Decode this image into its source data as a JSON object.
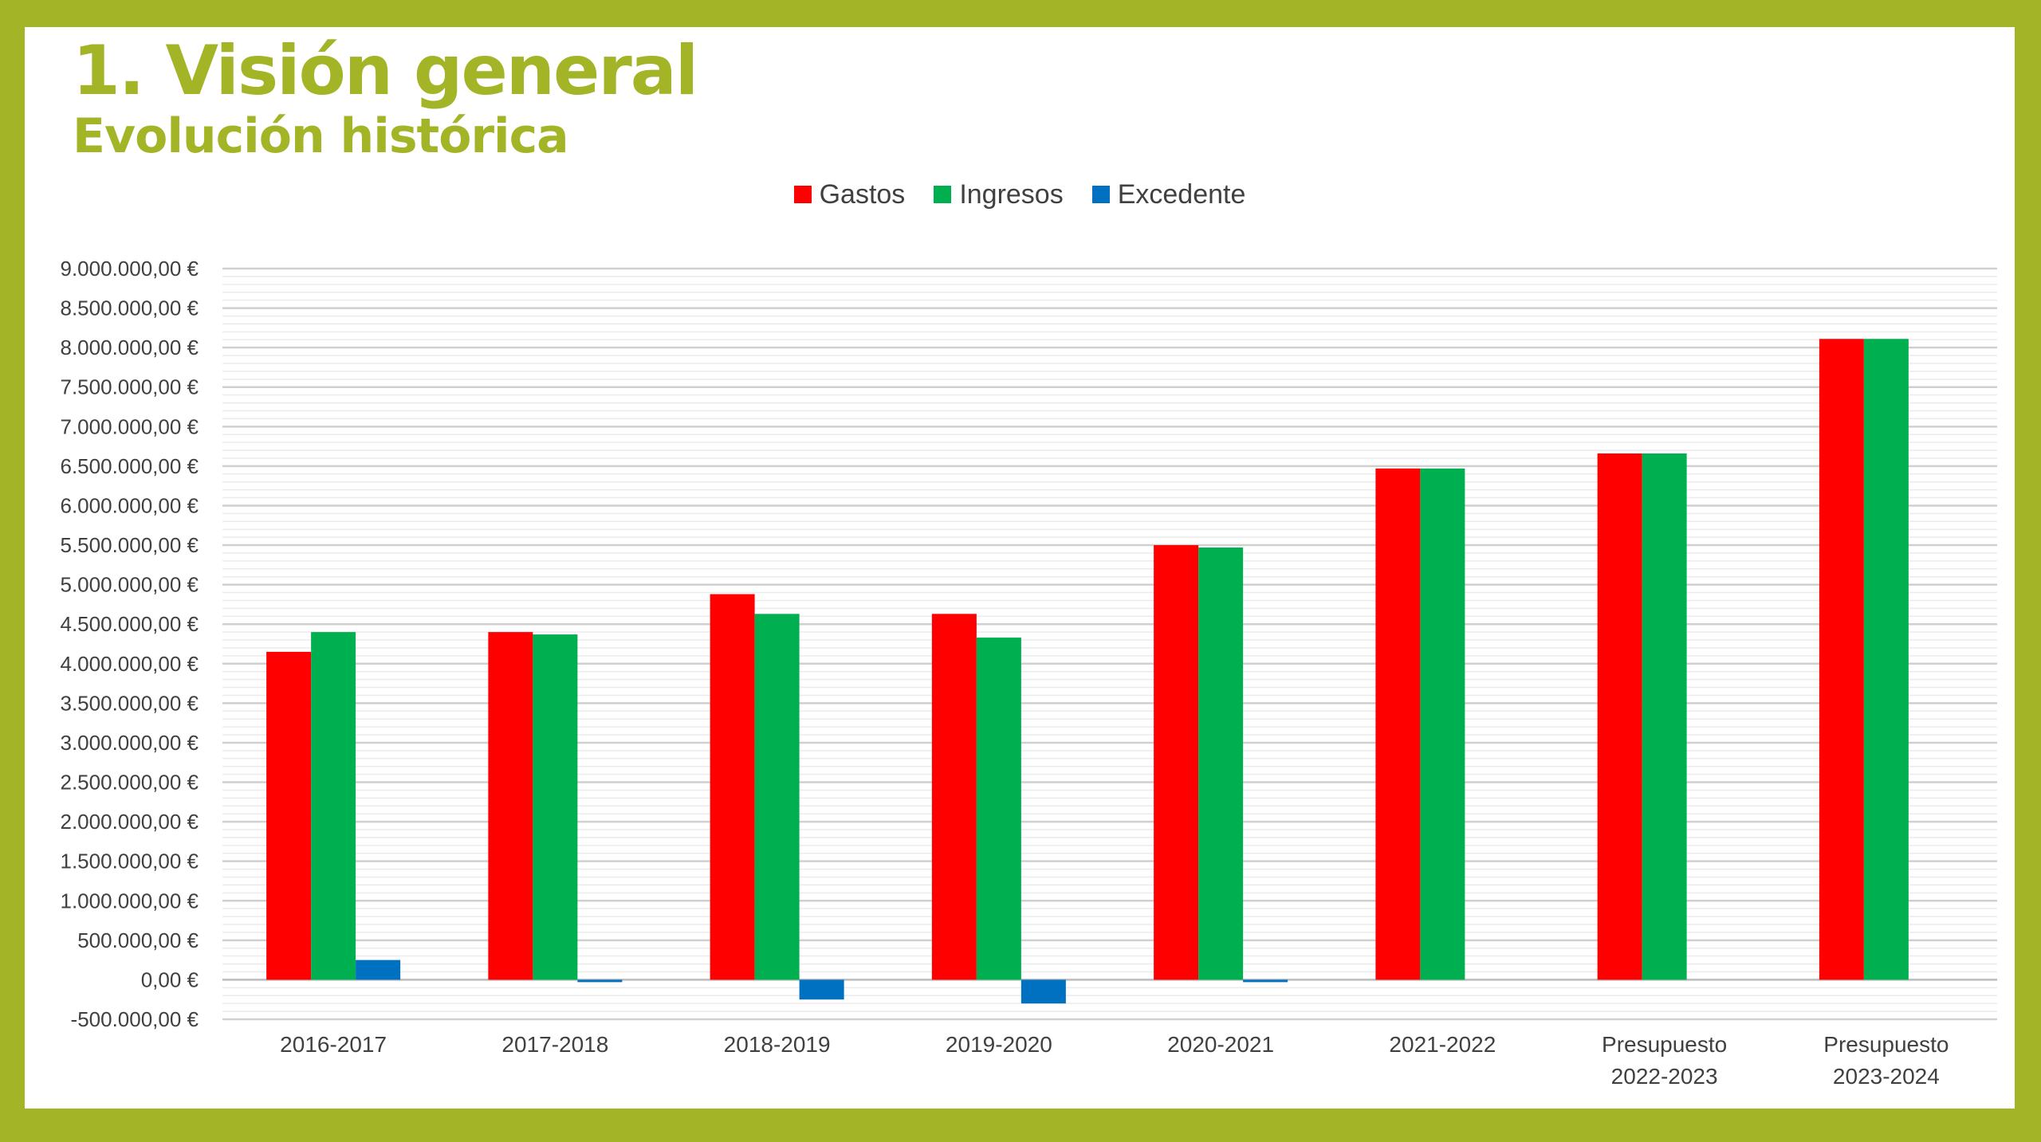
{
  "slide": {
    "title": "1. Visión general",
    "subtitle": "Evolución histórica"
  },
  "colors": {
    "frame": "#a3b527",
    "title": "#a3b527",
    "gastos": "#ff0000",
    "ingresos": "#00b050",
    "excedente": "#0070c0"
  },
  "chart_data": {
    "type": "bar",
    "categories": [
      [
        "2016-2017"
      ],
      [
        "2017-2018"
      ],
      [
        "2018-2019"
      ],
      [
        "2019-2020"
      ],
      [
        "2020-2021"
      ],
      [
        "2021-2022"
      ],
      [
        "Presupuesto",
        "2022-2023"
      ],
      [
        "Presupuesto",
        "2023-2024"
      ]
    ],
    "series": [
      {
        "name": "Gastos",
        "color": "#ff0000",
        "values": [
          4150000,
          4400000,
          4880000,
          4630000,
          5500000,
          6470000,
          6660000,
          8110000
        ]
      },
      {
        "name": "Ingresos",
        "color": "#00b050",
        "values": [
          4400000,
          4370000,
          4630000,
          4330000,
          5470000,
          6470000,
          6660000,
          8110000
        ]
      },
      {
        "name": "Excedente",
        "color": "#0070c0",
        "values": [
          250000,
          -30000,
          -250000,
          -300000,
          -30000,
          0,
          0,
          0
        ]
      }
    ],
    "yticks": [
      "-500.000,00 €",
      "0,00 €",
      "500.000,00 €",
      "1.000.000,00 €",
      "1.500.000,00 €",
      "2.000.000,00 €",
      "2.500.000,00 €",
      "3.000.000,00 €",
      "3.500.000,00 €",
      "4.000.000,00 €",
      "4.500.000,00 €",
      "5.000.000,00 €",
      "5.500.000,00 €",
      "6.000.000,00 €",
      "6.500.000,00 €",
      "7.000.000,00 €",
      "7.500.000,00 €",
      "8.000.000,00 €",
      "8.500.000,00 €",
      "9.000.000,00 €"
    ],
    "ylim": [
      -500000,
      9000000
    ],
    "ytick_step": 500000,
    "minor_grid_step": 100000,
    "grid": true,
    "legend_position": "top-center",
    "title": "",
    "xlabel": "",
    "ylabel": ""
  }
}
